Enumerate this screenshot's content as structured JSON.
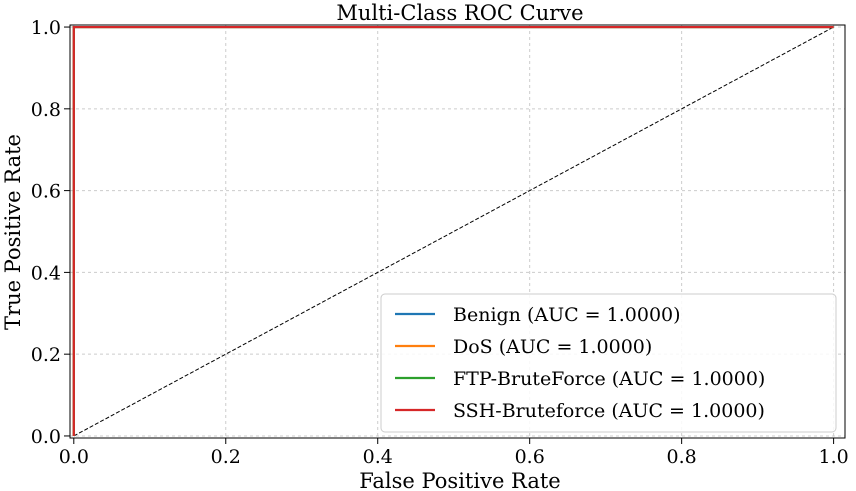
{
  "chart_data": {
    "type": "line",
    "title": "Multi-Class ROC Curve",
    "xlabel": "False Positive Rate",
    "ylabel": "True Positive Rate",
    "xlim": [
      -0.005,
      1.015
    ],
    "ylim": [
      -0.005,
      1.005
    ],
    "grid": true,
    "legend_position": "bottom-right",
    "x_ticks": [
      0.0,
      0.2,
      0.4,
      0.6,
      0.8,
      1.0
    ],
    "x_tick_labels": [
      "0.0",
      "0.2",
      "0.4",
      "0.6",
      "0.8",
      "1.0"
    ],
    "y_ticks": [
      0.0,
      0.2,
      0.4,
      0.6,
      0.8,
      1.0
    ],
    "y_tick_labels": [
      "0.0",
      "0.2",
      "0.4",
      "0.6",
      "0.8",
      "1.0"
    ],
    "series": [
      {
        "name": "Benign",
        "legend_label": "Benign (AUC = 1.0000)",
        "color": "#1f77b4",
        "x": [
          0.0,
          0.0,
          1.0
        ],
        "y": [
          0.0,
          1.0,
          1.0
        ]
      },
      {
        "name": "DoS",
        "legend_label": "DoS (AUC = 1.0000)",
        "color": "#ff7f0e",
        "x": [
          0.0,
          0.0,
          1.0
        ],
        "y": [
          0.0,
          1.0,
          1.0
        ]
      },
      {
        "name": "FTP-BruteForce",
        "legend_label": "FTP-BruteForce (AUC = 1.0000)",
        "color": "#2ca02c",
        "x": [
          0.0,
          0.0,
          1.0
        ],
        "y": [
          0.0,
          1.0,
          1.0
        ]
      },
      {
        "name": "SSH-Bruteforce",
        "legend_label": "SSH-Bruteforce (AUC = 1.0000)",
        "color": "#d62728",
        "x": [
          0.0,
          0.0,
          1.0
        ],
        "y": [
          0.0,
          1.0,
          1.0
        ]
      }
    ],
    "reference_line": {
      "x": [
        0.0,
        1.0
      ],
      "y": [
        0.0,
        1.0
      ],
      "color": "#000000",
      "style": "dashed"
    }
  }
}
